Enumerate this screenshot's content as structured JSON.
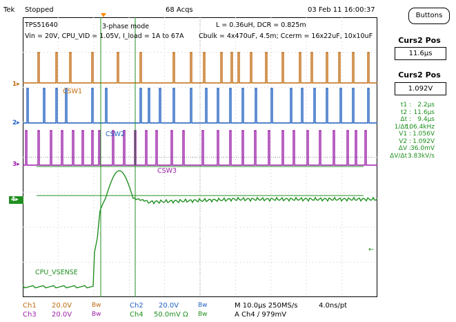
{
  "header": {
    "brand": "Tek",
    "run_state": "Stopped",
    "acqs": "68 Acqs",
    "datetime": "03 Feb 11 16:00:37"
  },
  "menu": {
    "buttons_label": "Buttons"
  },
  "annotations": {
    "device": "TPS51640",
    "mode": "3-phase mode",
    "conditions": "Vin = 20V, CPU_VID = 1.05V, I_load = 1A to 67A",
    "inductor": "L = 0.36uH, DCR = 0.825m",
    "caps": "Cbulk = 4x470uF, 4.5m;   Ccerm = 16x22uF, 10x10uF",
    "ch1_label": "CSW1",
    "ch2_label": "CSW2",
    "ch3_label": "CSW3",
    "ch4_label": "CPU_VSENSE"
  },
  "channel_markers": {
    "ch1": "1",
    "ch2": "2",
    "ch3": "3",
    "ch4": "4"
  },
  "cursors": {
    "curs2_time_title": "Curs2 Pos",
    "curs2_time_value": "11.6µs",
    "curs2_volt_title": "Curs2 Pos",
    "curs2_volt_value": "1.092V"
  },
  "measurements": [
    {
      "label": "t1 :",
      "value": "2.2µs"
    },
    {
      "label": "t2 :",
      "value": "11.6µs"
    },
    {
      "label": "Δt :",
      "value": "9.4µs"
    },
    {
      "label": "1/Δt :",
      "value": "106.4kHz"
    },
    {
      "label": "V1 :",
      "value": "1.056V"
    },
    {
      "label": "V2 :",
      "value": "1.092V"
    },
    {
      "label": "ΔV :",
      "value": "36.0mV"
    },
    {
      "label": "ΔV/Δt :",
      "value": "3.83kV/s"
    }
  ],
  "bottom": {
    "ch1_name": "Ch1",
    "ch1_scale": "20.0V",
    "ch1_bw": "Bw",
    "ch2_name": "Ch2",
    "ch2_scale": "20.0V",
    "ch2_bw": "Bw",
    "ch3_name": "Ch3",
    "ch3_scale": "20.0V",
    "ch3_bw": "Bw",
    "ch4_name": "Ch4",
    "ch4_scale": "50.0mV Ω",
    "ch4_bw": "Bw",
    "timebase": "M 10.0µs 250MS/s",
    "sample": "4.0ns/pt",
    "trigger": "A  Ch4  ∕  979mV"
  },
  "colors": {
    "ch1": "#c06a10",
    "ch2": "#1e5fbf",
    "ch3": "#9b1fa8",
    "ch4": "#1f8f1f",
    "trigger": "#ff8c00"
  }
}
